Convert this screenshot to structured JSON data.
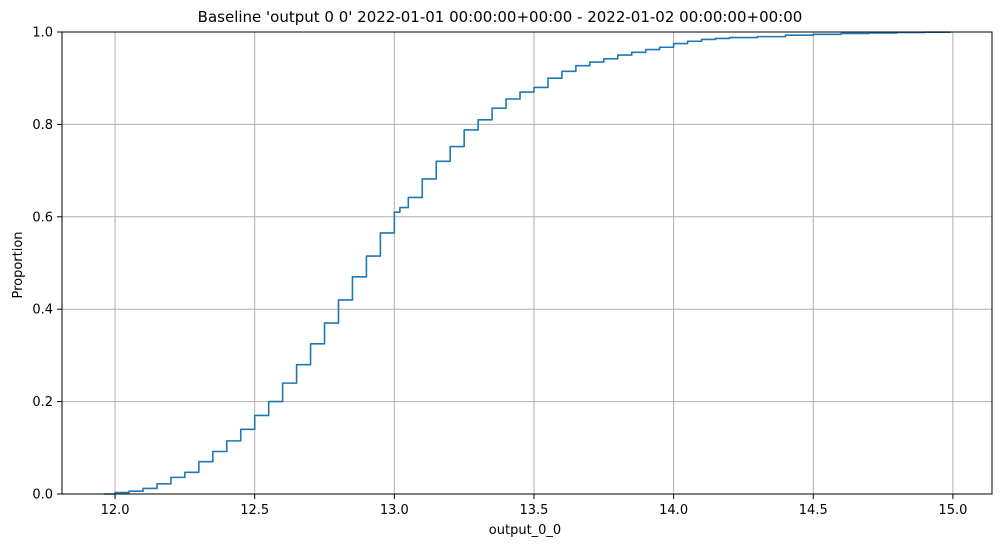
{
  "chart_data": {
    "type": "line",
    "title": "Baseline 'output 0 0' 2022-01-01 00:00:00+00:00 - 2022-01-02 00:00:00+00:00",
    "xlabel": "output_0_0",
    "ylabel": "Proportion",
    "xlim": [
      11.81,
      15.14
    ],
    "ylim": [
      0,
      1
    ],
    "grid": true,
    "xticks": [
      12.0,
      12.5,
      13.0,
      13.5,
      14.0,
      14.5,
      15.0
    ],
    "xtick_labels": [
      "12.0",
      "12.5",
      "13.0",
      "13.5",
      "14.0",
      "14.5",
      "15.0"
    ],
    "yticks": [
      0.0,
      0.2,
      0.4,
      0.6,
      0.8,
      1.0
    ],
    "ytick_labels": [
      "0.0",
      "0.2",
      "0.4",
      "0.6",
      "0.8",
      "1.0"
    ],
    "series": [
      {
        "color": "#1f77b4",
        "x": [
          11.96,
          12.0,
          12.05,
          12.1,
          12.15,
          12.2,
          12.25,
          12.3,
          12.35,
          12.4,
          12.45,
          12.5,
          12.55,
          12.6,
          12.65,
          12.7,
          12.75,
          12.8,
          12.85,
          12.9,
          12.95,
          13.0,
          13.02,
          13.05,
          13.1,
          13.15,
          13.2,
          13.25,
          13.3,
          13.35,
          13.4,
          13.45,
          13.5,
          13.55,
          13.6,
          13.65,
          13.7,
          13.75,
          13.8,
          13.85,
          13.9,
          13.95,
          14.0,
          14.05,
          14.1,
          14.15,
          14.2,
          14.3,
          14.4,
          14.5,
          14.6,
          14.7,
          14.8,
          14.9,
          14.99
        ],
        "y": [
          0.0,
          0.003,
          0.006,
          0.012,
          0.022,
          0.036,
          0.047,
          0.07,
          0.092,
          0.115,
          0.14,
          0.17,
          0.2,
          0.24,
          0.28,
          0.325,
          0.37,
          0.42,
          0.47,
          0.515,
          0.565,
          0.61,
          0.62,
          0.642,
          0.682,
          0.72,
          0.752,
          0.788,
          0.81,
          0.835,
          0.855,
          0.87,
          0.88,
          0.9,
          0.915,
          0.927,
          0.935,
          0.942,
          0.95,
          0.956,
          0.962,
          0.967,
          0.975,
          0.98,
          0.984,
          0.986,
          0.988,
          0.99,
          0.993,
          0.995,
          0.997,
          0.998,
          0.999,
          0.9995,
          1.0
        ]
      }
    ]
  },
  "colors": {
    "line": "#1f77b4",
    "grid": "#b0b0b0",
    "axes": "#000000",
    "background": "#ffffff"
  }
}
